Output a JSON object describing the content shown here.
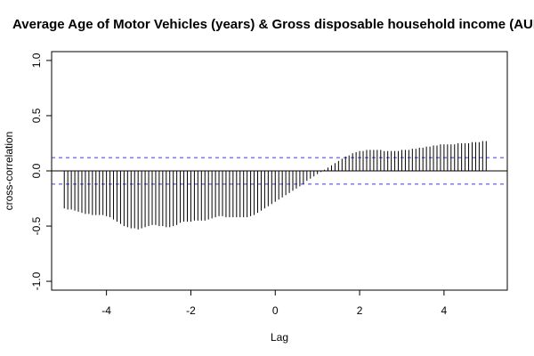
{
  "chart_data": {
    "type": "bar",
    "title": "Average Age of Motor Vehicles (years) & Gross disposable household income (AUD b",
    "xlabel": "Lag",
    "ylabel": "cross-correlation",
    "xlim": [
      -5.3,
      5.5
    ],
    "ylim": [
      -1.08,
      1.08
    ],
    "x_ticks": [
      -4,
      -2,
      0,
      2,
      4
    ],
    "x_tick_labels": [
      "-4",
      "-2",
      "0",
      "2",
      "4"
    ],
    "y_ticks": [
      -1.0,
      -0.5,
      0.0,
      0.5,
      1.0
    ],
    "y_tick_labels": [
      "-1.0",
      "-0.5",
      "0.0",
      "0.5",
      "1.0"
    ],
    "confidence_bounds": [
      0.12,
      -0.12
    ],
    "lag_step": 0.0833,
    "lag_range": [
      -5.0,
      5.0
    ],
    "values": [
      -0.34,
      -0.35,
      -0.35,
      -0.36,
      -0.37,
      -0.38,
      -0.39,
      -0.39,
      -0.4,
      -0.4,
      -0.4,
      -0.4,
      -0.41,
      -0.42,
      -0.44,
      -0.46,
      -0.48,
      -0.5,
      -0.51,
      -0.52,
      -0.52,
      -0.53,
      -0.52,
      -0.51,
      -0.5,
      -0.49,
      -0.49,
      -0.5,
      -0.5,
      -0.51,
      -0.51,
      -0.5,
      -0.49,
      -0.47,
      -0.46,
      -0.46,
      -0.46,
      -0.45,
      -0.45,
      -0.45,
      -0.45,
      -0.44,
      -0.43,
      -0.42,
      -0.41,
      -0.41,
      -0.42,
      -0.42,
      -0.42,
      -0.42,
      -0.42,
      -0.42,
      -0.42,
      -0.41,
      -0.4,
      -0.38,
      -0.36,
      -0.34,
      -0.32,
      -0.3,
      -0.28,
      -0.26,
      -0.24,
      -0.22,
      -0.2,
      -0.18,
      -0.16,
      -0.14,
      -0.12,
      -0.09,
      -0.07,
      -0.05,
      -0.03,
      -0.01,
      0.01,
      0.03,
      0.05,
      0.07,
      0.09,
      0.11,
      0.13,
      0.14,
      0.16,
      0.17,
      0.18,
      0.18,
      0.19,
      0.19,
      0.19,
      0.19,
      0.19,
      0.18,
      0.18,
      0.18,
      0.18,
      0.18,
      0.19,
      0.19,
      0.19,
      0.2,
      0.2,
      0.21,
      0.21,
      0.22,
      0.22,
      0.23,
      0.23,
      0.24,
      0.24,
      0.24,
      0.24,
      0.24,
      0.25,
      0.25,
      0.25,
      0.25,
      0.26,
      0.26,
      0.26,
      0.27,
      0.27
    ]
  }
}
